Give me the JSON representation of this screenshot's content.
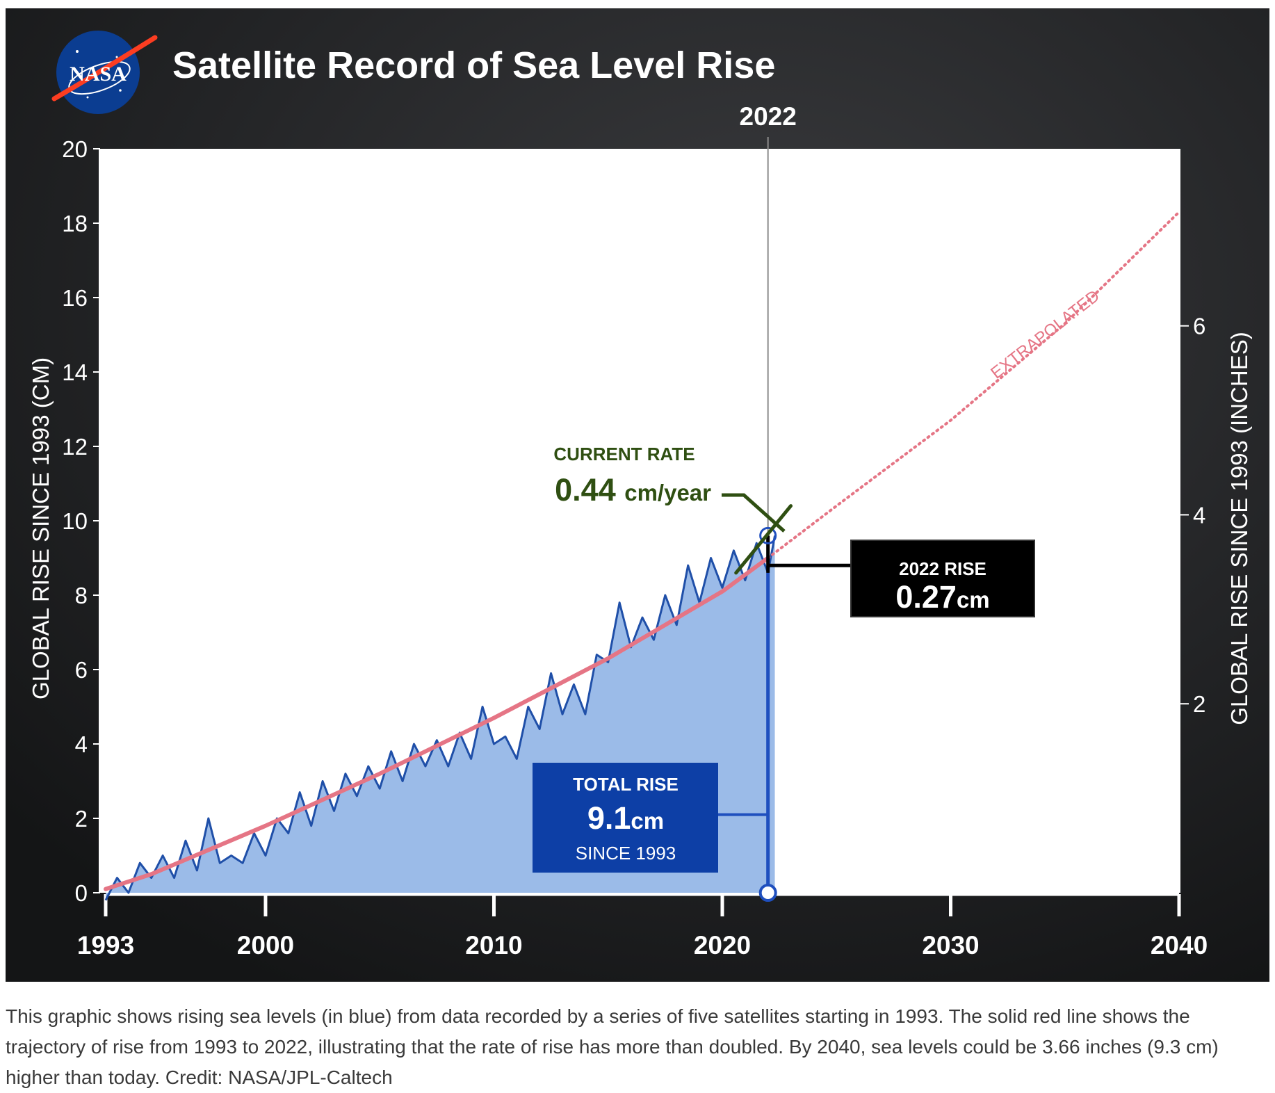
{
  "chart_data": {
    "type": "area",
    "title": "Satellite Record of Sea Level Rise",
    "logo_text": "NASA",
    "ylabel_left": "GLOBAL RISE SINCE 1993 (CM)",
    "ylabel_right": "GLOBAL RISE SINCE 1993 (INCHES)",
    "xlim": [
      1993,
      2040
    ],
    "ylim_cm": [
      0,
      20
    ],
    "x_ticks": [
      1993,
      2000,
      2010,
      2020,
      2030,
      2040
    ],
    "y_ticks_cm": [
      0,
      2,
      4,
      6,
      8,
      10,
      12,
      14,
      16,
      18,
      20
    ],
    "y_ticks_in": [
      2,
      4,
      6
    ],
    "marker_year": 2022,
    "marker_label": "2022",
    "series": [
      {
        "name": "",
        "kind": "measured",
        "color": "#1f4fa8",
        "fill": "#9bbbe8",
        "x": [
          1993.0,
          1993.5,
          1994.0,
          1994.5,
          1995.0,
          1995.5,
          1996.0,
          1996.5,
          1997.0,
          1997.5,
          1998.0,
          1998.5,
          1999.0,
          1999.5,
          2000.0,
          2000.5,
          2001.0,
          2001.5,
          2002.0,
          2002.5,
          2003.0,
          2003.5,
          2004.0,
          2004.5,
          2005.0,
          2005.5,
          2006.0,
          2006.5,
          2007.0,
          2007.5,
          2008.0,
          2008.5,
          2009.0,
          2009.5,
          2010.0,
          2010.5,
          2011.0,
          2011.5,
          2012.0,
          2012.5,
          2013.0,
          2013.5,
          2014.0,
          2014.5,
          2015.0,
          2015.5,
          2016.0,
          2016.5,
          2017.0,
          2017.5,
          2018.0,
          2018.5,
          2019.0,
          2019.5,
          2020.0,
          2020.5,
          2021.0,
          2021.5,
          2022.0,
          2022.3
        ],
        "values": [
          -0.2,
          0.4,
          0.0,
          0.8,
          0.4,
          1.0,
          0.4,
          1.4,
          0.6,
          2.0,
          0.8,
          1.0,
          0.8,
          1.6,
          1.0,
          2.0,
          1.6,
          2.7,
          1.8,
          3.0,
          2.2,
          3.2,
          2.6,
          3.4,
          2.8,
          3.8,
          3.0,
          4.0,
          3.4,
          4.1,
          3.4,
          4.3,
          3.6,
          5.0,
          4.0,
          4.2,
          3.6,
          5.0,
          4.4,
          5.9,
          4.8,
          5.6,
          4.8,
          6.4,
          6.2,
          7.8,
          6.6,
          7.4,
          6.8,
          8.0,
          7.2,
          8.8,
          7.8,
          9.0,
          8.2,
          9.2,
          8.4,
          9.4,
          8.6,
          9.6
        ]
      },
      {
        "name": "",
        "kind": "trend",
        "color": "#e57585",
        "x": [
          1993,
          1995,
          2000,
          2005,
          2010,
          2015,
          2020,
          2022
        ],
        "values": [
          0.1,
          0.5,
          1.8,
          3.2,
          4.7,
          6.3,
          8.1,
          9.0
        ]
      },
      {
        "name": "EXTRAPOLATED",
        "kind": "extrapolated",
        "color": "#e57585",
        "x": [
          2022,
          2025,
          2030,
          2035,
          2040
        ],
        "values": [
          9.0,
          10.4,
          12.7,
          15.3,
          18.3
        ]
      }
    ],
    "annotations": {
      "current_rate": {
        "heading": "CURRENT RATE",
        "value": "0.44",
        "unit": "cm/year",
        "color": "#2f4f12"
      },
      "rise_2022": {
        "heading": "2022 RISE",
        "value": "0.27",
        "unit": "cm"
      },
      "total_rise": {
        "heading": "TOTAL RISE",
        "value": "9.1",
        "unit": "cm",
        "subheading": "SINCE 1993"
      }
    }
  },
  "caption": "This graphic shows rising sea levels (in blue) from data recorded by a series of five satellites starting in 1993. The solid red line shows the trajectory of rise from 1993 to 2022, illustrating that the rate of rise has more than doubled. By 2040, sea levels could be 3.66 inches (9.3 cm) higher than today. Credit: NASA/JPL-Caltech"
}
